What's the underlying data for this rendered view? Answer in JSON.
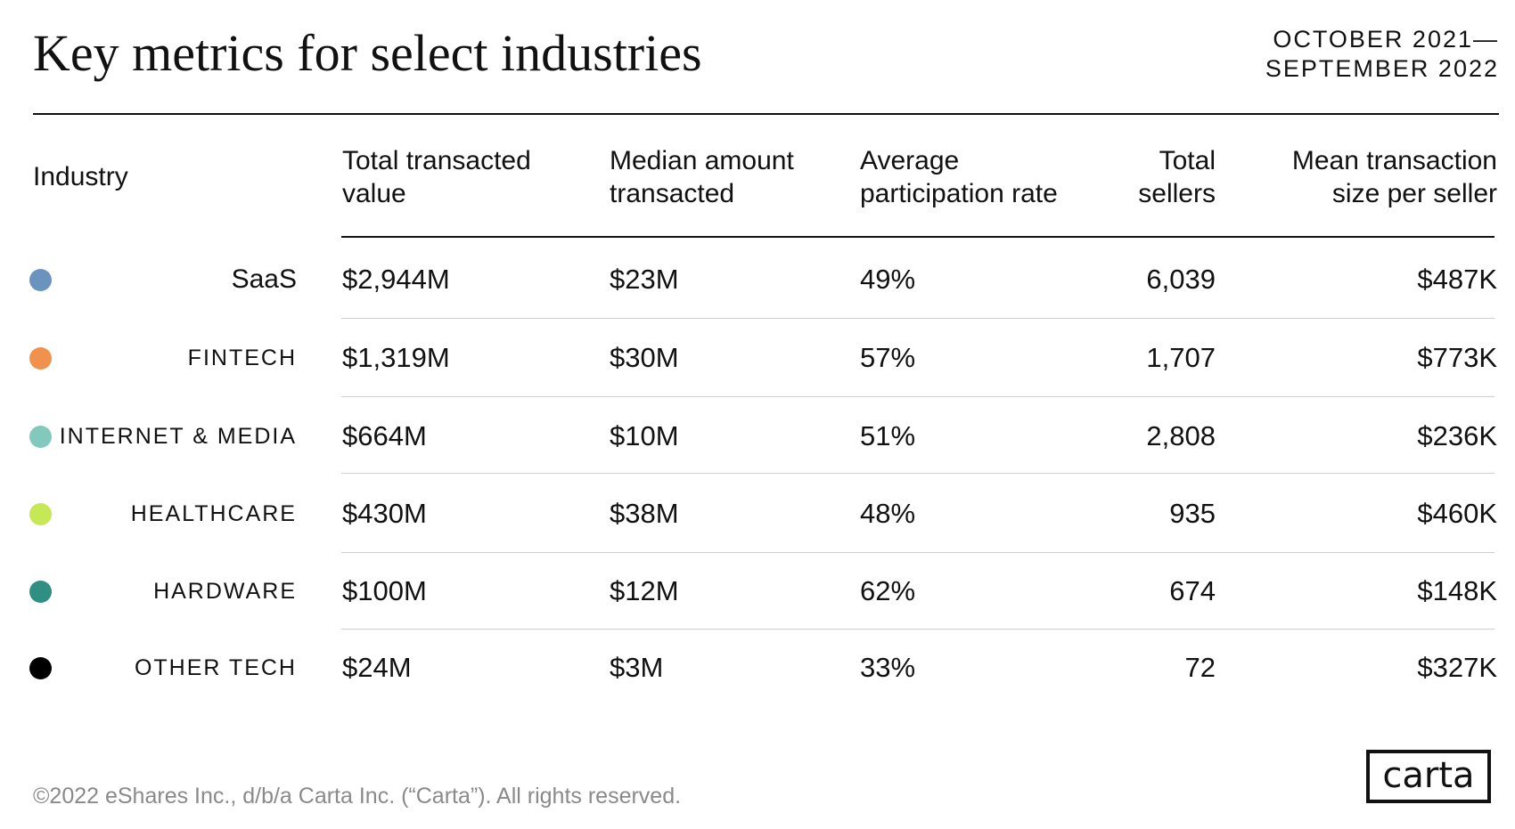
{
  "title": "Key metrics for select industries",
  "date_range": [
    "OCTOBER 2021—",
    "SEPTEMBER 2022"
  ],
  "footer": "©2022 eShares Inc., d/b/a Carta Inc. (“Carta”). All rights reserved.",
  "logo_text": "carta",
  "chart_data": {
    "type": "table",
    "columns": [
      {
        "key": "industry",
        "label": [
          "",
          "Industry"
        ]
      },
      {
        "key": "total_value",
        "label": [
          "Total transacted",
          "value"
        ]
      },
      {
        "key": "median",
        "label": [
          "Median amount",
          "transacted"
        ]
      },
      {
        "key": "participation",
        "label": [
          "Average",
          "participation rate"
        ]
      },
      {
        "key": "sellers",
        "label": [
          "Total",
          "sellers"
        ]
      },
      {
        "key": "mean_size",
        "label": [
          "Mean transaction",
          "size per seller"
        ]
      }
    ],
    "rows": [
      {
        "industry": "SaaS",
        "color": "#6a93bd",
        "total_value": "$2,944M",
        "median": "$23M",
        "participation": "49%",
        "sellers": "6,039",
        "mean_size": "$487K"
      },
      {
        "industry": "FINTECH",
        "color": "#f0914d",
        "total_value": "$1,319M",
        "median": "$30M",
        "participation": "57%",
        "sellers": "1,707",
        "mean_size": "$773K"
      },
      {
        "industry": "INTERNET & MEDIA",
        "color": "#82c8bd",
        "total_value": "$664M",
        "median": "$10M",
        "participation": "51%",
        "sellers": "2,808",
        "mean_size": "$236K"
      },
      {
        "industry": "HEALTHCARE",
        "color": "#c5e854",
        "total_value": "$430M",
        "median": "$38M",
        "participation": "48%",
        "sellers": "935",
        "mean_size": "$460K"
      },
      {
        "industry": "HARDWARE",
        "color": "#2e8f82",
        "total_value": "$100M",
        "median": "$12M",
        "participation": "62%",
        "sellers": "674",
        "mean_size": "$148K"
      },
      {
        "industry": "OTHER TECH",
        "color": "#000000",
        "total_value": "$24M",
        "median": "$3M",
        "participation": "33%",
        "sellers": "72",
        "mean_size": "$327K"
      }
    ]
  }
}
